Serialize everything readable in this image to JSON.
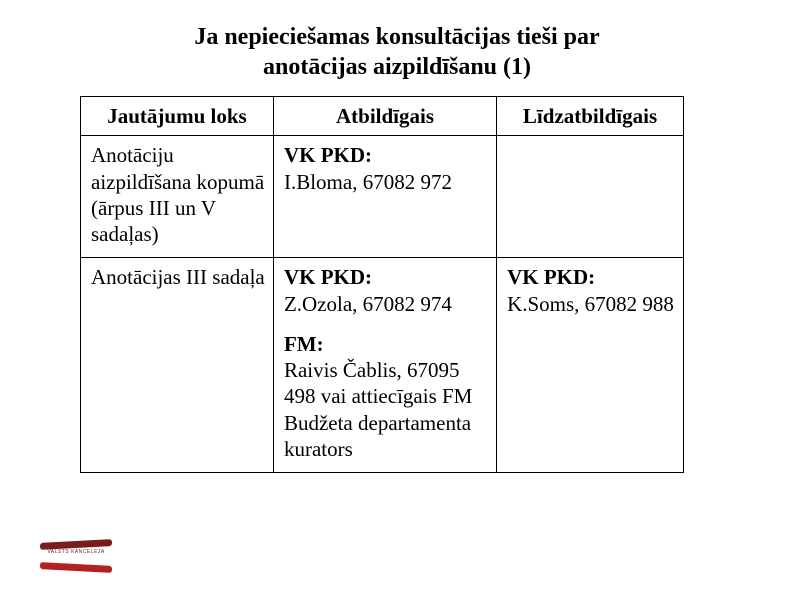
{
  "title_line1": "Ja nepieciešamas konsultācijas tieši par",
  "title_line2": "anotācijas aizpildīšanu (1)",
  "table": {
    "headers": {
      "col1": "Jautājumu loks",
      "col2": "Atbildīgais",
      "col3": "Līdzatbildīgais"
    },
    "rows": [
      {
        "topic": "Anotāciju aizpildīšana kopumā (ārpus III un V sadaļas)",
        "responsible": [
          {
            "org": "VK PKD:",
            "detail": "I.Bloma, 67082 972"
          }
        ],
        "coresponsible": []
      },
      {
        "topic": "Anotācijas III sadaļa",
        "responsible": [
          {
            "org": "VK PKD:",
            "detail": "Z.Ozola, 67082 974"
          },
          {
            "org": "FM:",
            "detail": "Raivis Čablis, 67095 498 vai attiecīgais FM Budžeta departamenta kurators"
          }
        ],
        "coresponsible": [
          {
            "org": "VK PKD:",
            "detail": "K.Soms, 67082 988"
          }
        ]
      }
    ]
  },
  "logo_text": "VALSTS KANCELEJA"
}
